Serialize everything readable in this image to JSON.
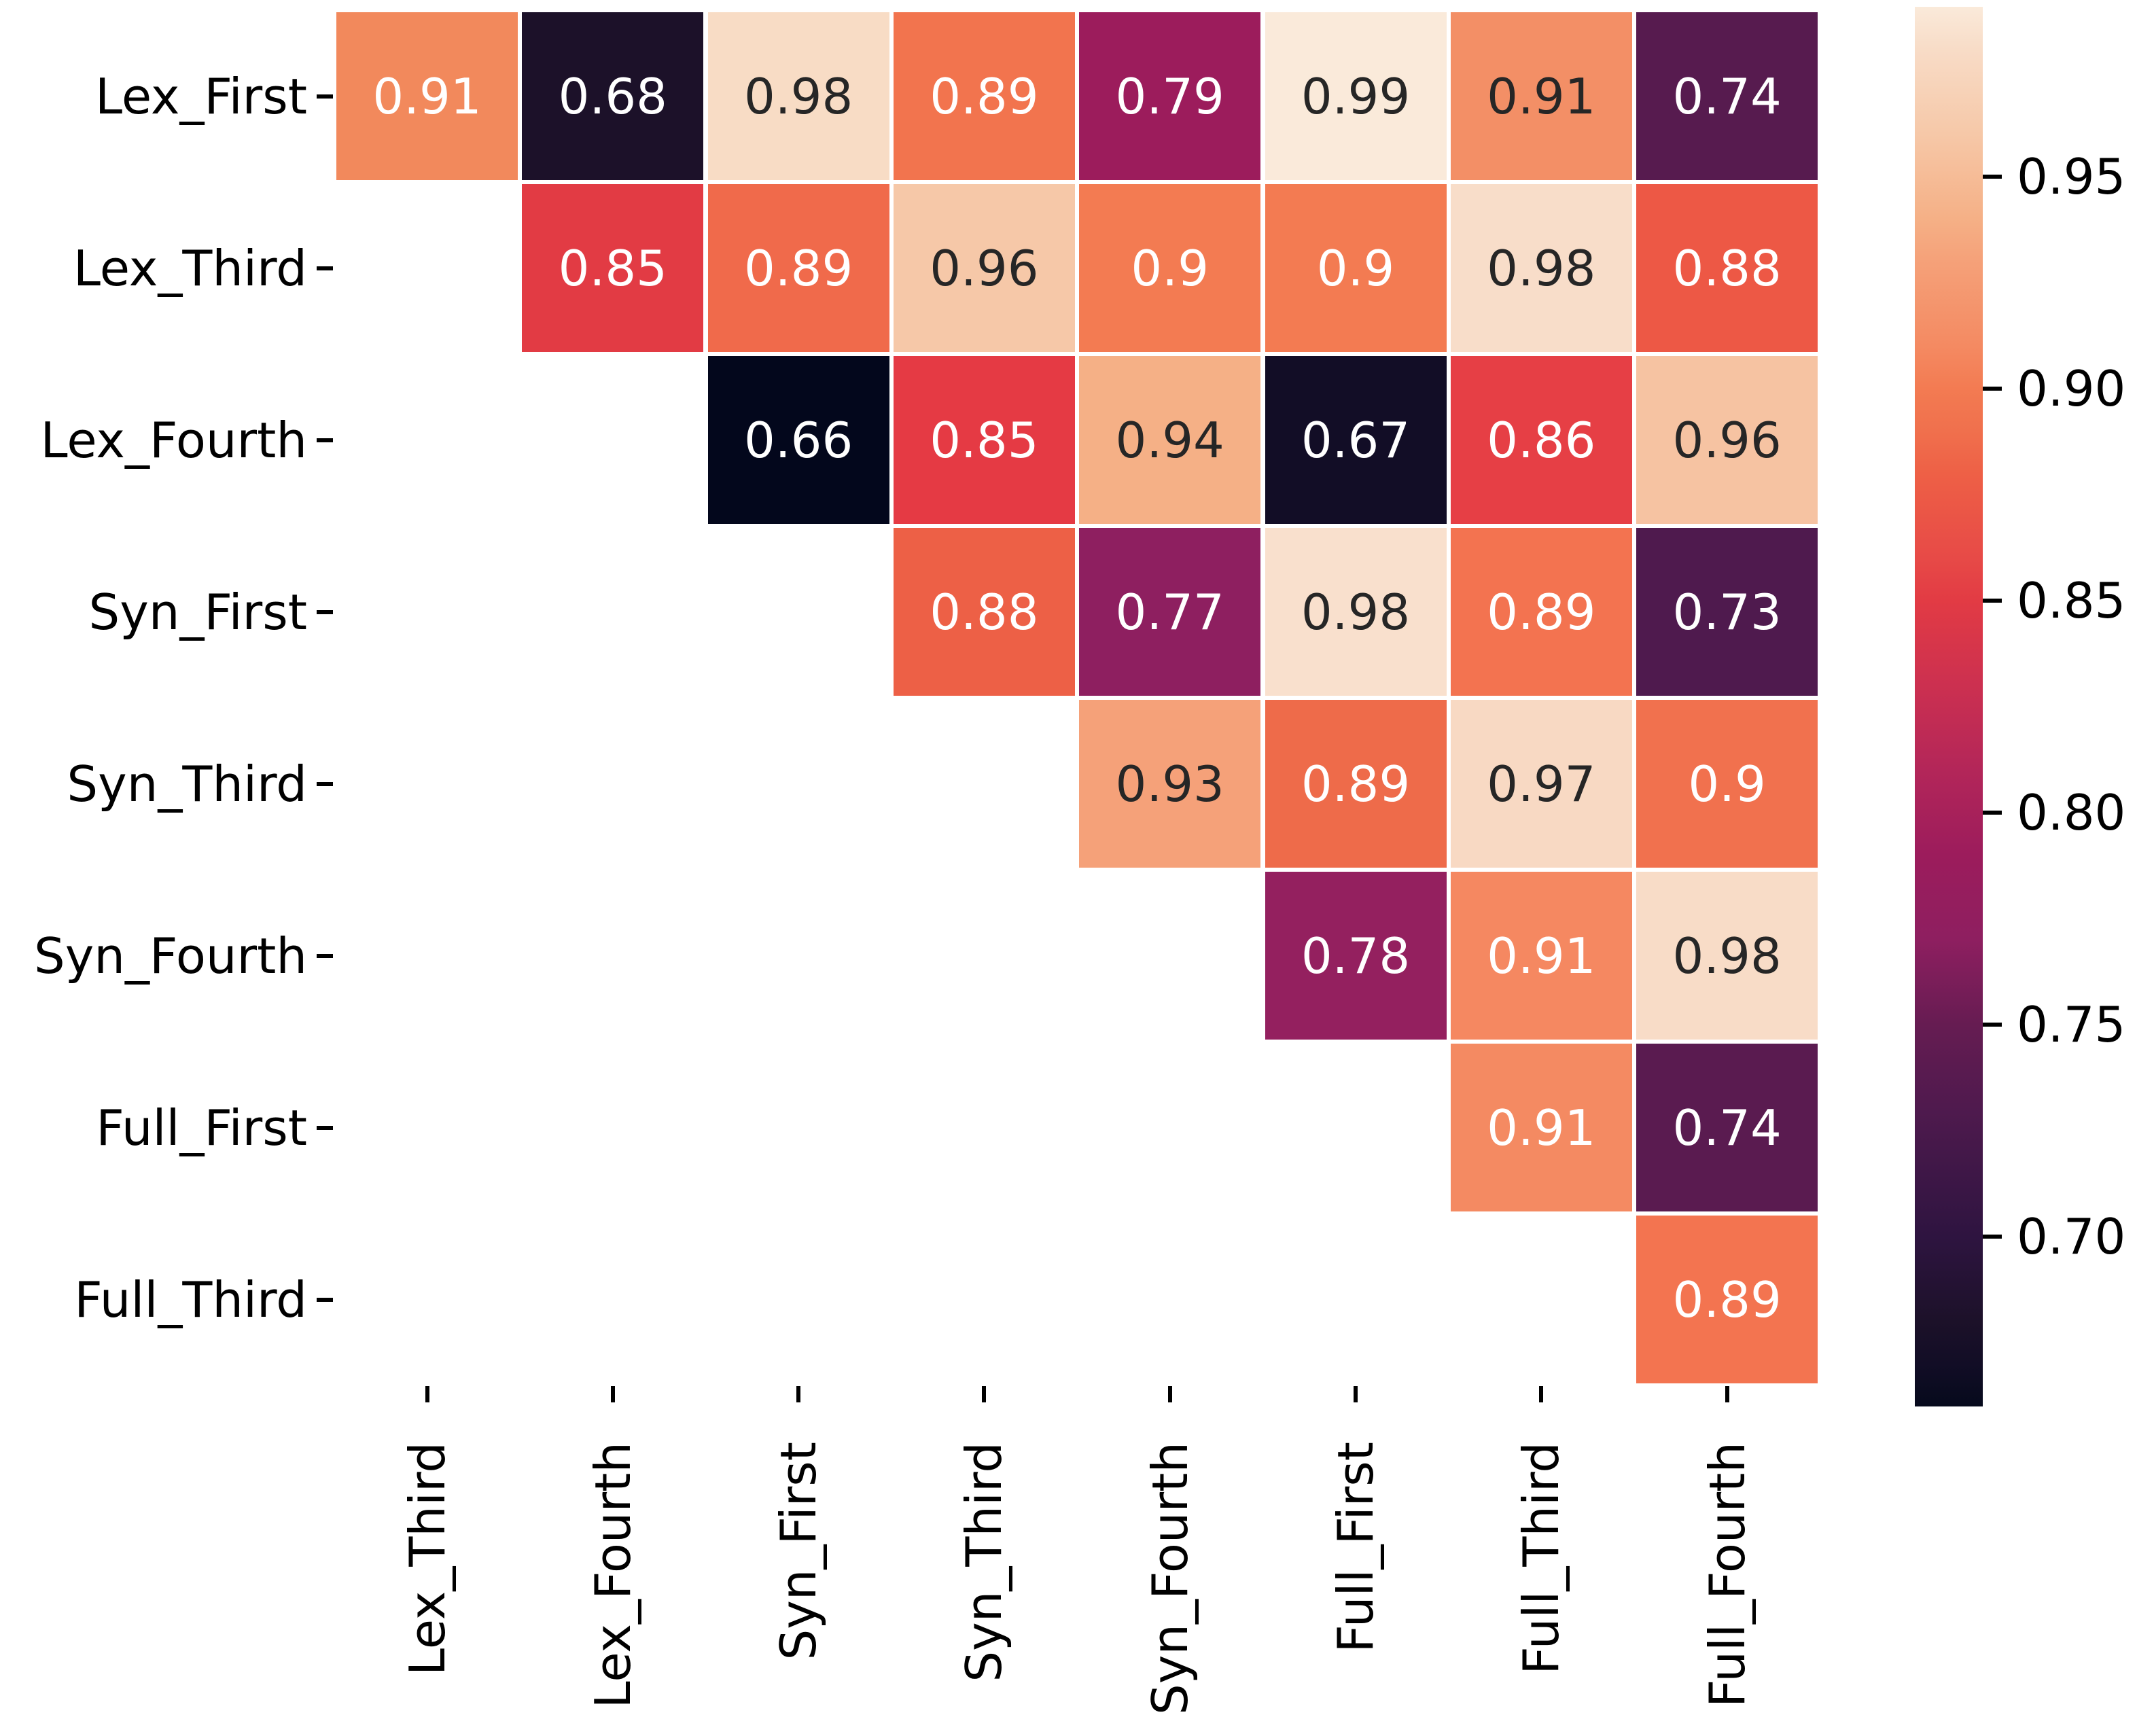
{
  "chart_data": {
    "type": "heatmap",
    "title": "",
    "xlabel": "",
    "ylabel": "",
    "grid": false,
    "legend_position": "colorbar-right",
    "row_labels": [
      "Lex_First",
      "Lex_Third",
      "Lex_Fourth",
      "Syn_First",
      "Syn_Third",
      "Syn_Fourth",
      "Full_First",
      "Full_Third"
    ],
    "col_labels": [
      "Lex_Third",
      "Lex_Fourth",
      "Syn_First",
      "Syn_Third",
      "Syn_Fourth",
      "Full_First",
      "Full_Third",
      "Full_Fourth"
    ],
    "mask": "lower-triangle-masked (upper triangle shown)",
    "vmin": 0.66,
    "vmax": 0.99,
    "annot_text_dark": "#262626",
    "annot_text_light": "#ffffff",
    "cells": [
      {
        "row": 0,
        "col": 0,
        "value": "0.91",
        "bg": "#F2895C",
        "text": "light"
      },
      {
        "row": 0,
        "col": 1,
        "value": "0.68",
        "bg": "#1C1129",
        "text": "light"
      },
      {
        "row": 0,
        "col": 2,
        "value": "0.98",
        "bg": "#F8DCC5",
        "text": "dark"
      },
      {
        "row": 0,
        "col": 3,
        "value": "0.89",
        "bg": "#F2744E",
        "text": "light"
      },
      {
        "row": 0,
        "col": 4,
        "value": "0.79",
        "bg": "#9C1C5C",
        "text": "light"
      },
      {
        "row": 0,
        "col": 5,
        "value": "0.99",
        "bg": "#FAEADA",
        "text": "dark"
      },
      {
        "row": 0,
        "col": 6,
        "value": "0.91",
        "bg": "#F38F66",
        "text": "dark"
      },
      {
        "row": 0,
        "col": 7,
        "value": "0.74",
        "bg": "#571B4F",
        "text": "light"
      },
      {
        "row": 1,
        "col": 1,
        "value": "0.85",
        "bg": "#E23B44",
        "text": "light"
      },
      {
        "row": 1,
        "col": 2,
        "value": "0.89",
        "bg": "#F06A4B",
        "text": "light"
      },
      {
        "row": 1,
        "col": 3,
        "value": "0.96",
        "bg": "#F6C8A8",
        "text": "dark"
      },
      {
        "row": 1,
        "col": 4,
        "value": "0.9",
        "bg": "#F37B52",
        "text": "light"
      },
      {
        "row": 1,
        "col": 5,
        "value": "0.9",
        "bg": "#F37B52",
        "text": "light"
      },
      {
        "row": 1,
        "col": 6,
        "value": "0.98",
        "bg": "#F8DDC9",
        "text": "dark"
      },
      {
        "row": 1,
        "col": 7,
        "value": "0.88",
        "bg": "#ED5845",
        "text": "light"
      },
      {
        "row": 2,
        "col": 2,
        "value": "0.66",
        "bg": "#03071C",
        "text": "light"
      },
      {
        "row": 2,
        "col": 3,
        "value": "0.85",
        "bg": "#E53A44",
        "text": "light"
      },
      {
        "row": 2,
        "col": 4,
        "value": "0.94",
        "bg": "#F5B086",
        "text": "dark"
      },
      {
        "row": 2,
        "col": 5,
        "value": "0.67",
        "bg": "#120D26",
        "text": "light"
      },
      {
        "row": 2,
        "col": 6,
        "value": "0.86",
        "bg": "#E63F45",
        "text": "light"
      },
      {
        "row": 2,
        "col": 7,
        "value": "0.96",
        "bg": "#F6C3A2",
        "text": "dark"
      },
      {
        "row": 3,
        "col": 3,
        "value": "0.88",
        "bg": "#ED6046",
        "text": "light"
      },
      {
        "row": 3,
        "col": 4,
        "value": "0.77",
        "bg": "#8E1F60",
        "text": "light"
      },
      {
        "row": 3,
        "col": 5,
        "value": "0.98",
        "bg": "#F9E0CD",
        "text": "dark"
      },
      {
        "row": 3,
        "col": 6,
        "value": "0.89",
        "bg": "#F37350",
        "text": "light"
      },
      {
        "row": 3,
        "col": 7,
        "value": "0.73",
        "bg": "#4F1A4E",
        "text": "light"
      },
      {
        "row": 4,
        "col": 4,
        "value": "0.93",
        "bg": "#F5A179",
        "text": "dark"
      },
      {
        "row": 4,
        "col": 5,
        "value": "0.89",
        "bg": "#EE6B4A",
        "text": "light"
      },
      {
        "row": 4,
        "col": 6,
        "value": "0.97",
        "bg": "#F8D9C3",
        "text": "dark"
      },
      {
        "row": 4,
        "col": 7,
        "value": "0.9",
        "bg": "#F1714E",
        "text": "light"
      },
      {
        "row": 5,
        "col": 5,
        "value": "0.78",
        "bg": "#94205F",
        "text": "light"
      },
      {
        "row": 5,
        "col": 6,
        "value": "0.91",
        "bg": "#F58861",
        "text": "light"
      },
      {
        "row": 5,
        "col": 7,
        "value": "0.98",
        "bg": "#F8DCC7",
        "text": "dark"
      },
      {
        "row": 6,
        "col": 6,
        "value": "0.91",
        "bg": "#F48A62",
        "text": "light"
      },
      {
        "row": 6,
        "col": 7,
        "value": "0.74",
        "bg": "#5A1B50",
        "text": "light"
      },
      {
        "row": 7,
        "col": 7,
        "value": "0.89",
        "bg": "#F37450",
        "text": "light"
      }
    ],
    "colorbar": {
      "tick_labels": [
        "0.95",
        "0.90",
        "0.85",
        "0.80",
        "0.75",
        "0.70"
      ],
      "tick_values": [
        0.95,
        0.9,
        0.85,
        0.8,
        0.75,
        0.7
      ],
      "top_value": 0.99,
      "bottom_value": 0.66,
      "stops": [
        {
          "v": 0.99,
          "c": "#FAEADA"
        },
        {
          "v": 0.98,
          "c": "#F8DCC7"
        },
        {
          "v": 0.96,
          "c": "#F6C8A8"
        },
        {
          "v": 0.94,
          "c": "#F5B086"
        },
        {
          "v": 0.93,
          "c": "#F5A179"
        },
        {
          "v": 0.91,
          "c": "#F48A62"
        },
        {
          "v": 0.9,
          "c": "#F37B52"
        },
        {
          "v": 0.89,
          "c": "#F0704D"
        },
        {
          "v": 0.88,
          "c": "#EE6046"
        },
        {
          "v": 0.86,
          "c": "#E74A47"
        },
        {
          "v": 0.85,
          "c": "#E23B44"
        },
        {
          "v": 0.83,
          "c": "#CC3050"
        },
        {
          "v": 0.81,
          "c": "#B32659"
        },
        {
          "v": 0.79,
          "c": "#9C1C5C"
        },
        {
          "v": 0.77,
          "c": "#8E1F60"
        },
        {
          "v": 0.75,
          "c": "#661C52"
        },
        {
          "v": 0.74,
          "c": "#5A1B50"
        },
        {
          "v": 0.73,
          "c": "#4F1A4E"
        },
        {
          "v": 0.7,
          "c": "#2E1440"
        },
        {
          "v": 0.68,
          "c": "#1C1129"
        },
        {
          "v": 0.67,
          "c": "#120D26"
        },
        {
          "v": 0.66,
          "c": "#060A1C"
        }
      ]
    }
  }
}
